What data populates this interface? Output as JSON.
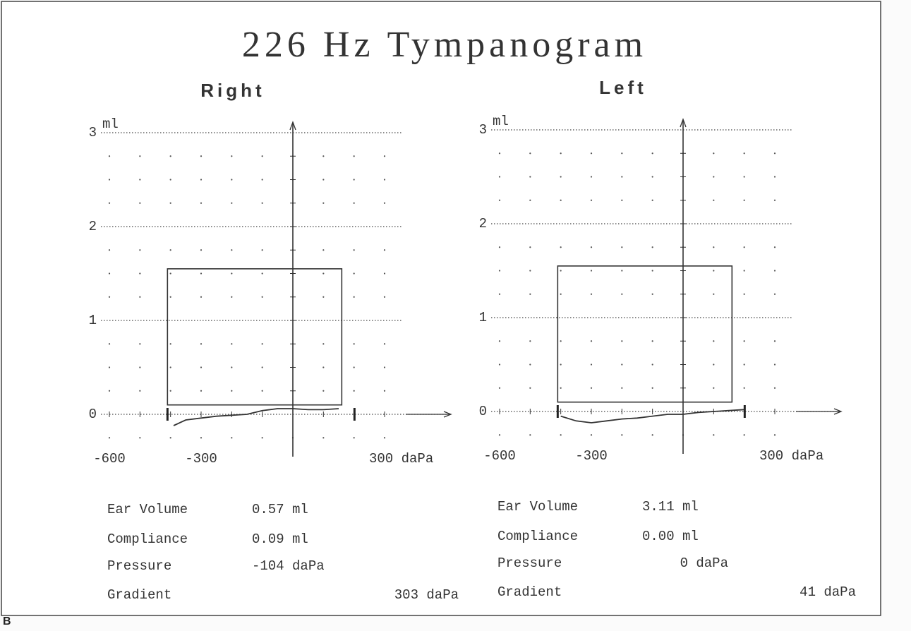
{
  "title": "226 Hz Tympanogram",
  "panel_label": "B",
  "chart_data": [
    {
      "type": "line",
      "title": "Right",
      "ylabel": "ml",
      "xlim": [
        -600,
        300
      ],
      "ylim": [
        0,
        3
      ],
      "xticks": [
        -600,
        -300,
        {
          "value": 300,
          "label": "300 daPa"
        }
      ],
      "yticks": [
        0,
        1,
        2,
        3
      ],
      "normal_range": {
        "x": [
          -410,
          160
        ],
        "y": [
          0.1,
          1.55
        ]
      },
      "x": [
        -390,
        -350,
        -300,
        -250,
        -200,
        -150,
        -100,
        -50,
        0,
        50,
        100,
        150
      ],
      "values": [
        -0.12,
        -0.06,
        -0.04,
        -0.02,
        -0.01,
        0.0,
        0.04,
        0.06,
        0.06,
        0.05,
        0.05,
        0.06
      ],
      "color": "#333333",
      "measurements": [
        {
          "label": "Ear Volume",
          "value": "0.57 ml"
        },
        {
          "label": "Compliance",
          "value": "0.09 ml"
        },
        {
          "label": "Pressure",
          "value": "-104 daPa"
        },
        {
          "label": "Gradient",
          "value": "303 daPa"
        }
      ]
    },
    {
      "type": "line",
      "title": "Left",
      "ylabel": "ml",
      "xlim": [
        -600,
        300
      ],
      "ylim": [
        0,
        3
      ],
      "xticks": [
        -600,
        -300,
        {
          "value": 300,
          "label": "300 daPa"
        }
      ],
      "yticks": [
        0,
        1,
        2,
        3
      ],
      "normal_range": {
        "x": [
          -410,
          160
        ],
        "y": [
          0.1,
          1.55
        ]
      },
      "x": [
        -400,
        -350,
        -300,
        -250,
        -200,
        -150,
        -100,
        -50,
        0,
        50,
        100,
        150,
        200
      ],
      "values": [
        -0.05,
        -0.1,
        -0.12,
        -0.1,
        -0.08,
        -0.07,
        -0.05,
        -0.03,
        -0.03,
        -0.01,
        0.0,
        0.01,
        0.02
      ],
      "color": "#333333",
      "measurements": [
        {
          "label": "Ear Volume",
          "value": "3.11 ml"
        },
        {
          "label": "Compliance",
          "value": "0.00 ml"
        },
        {
          "label": "Pressure",
          "value": "0 daPa"
        },
        {
          "label": "Gradient",
          "value": "41 daPa"
        }
      ]
    }
  ]
}
